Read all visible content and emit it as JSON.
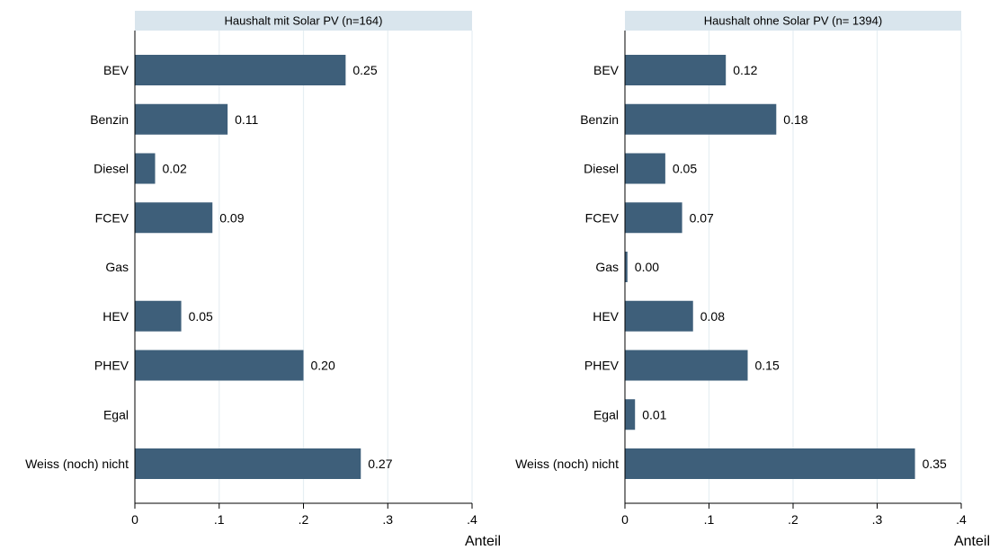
{
  "chart_data": {
    "type": "bar",
    "orientation": "horizontal",
    "categories": [
      "BEV",
      "Benzin",
      "Diesel",
      "FCEV",
      "Gas",
      "HEV",
      "PHEV",
      "Egal",
      "Weiss (noch) nicht"
    ],
    "xlabel": "Anteil",
    "xlim": [
      0,
      0.4
    ],
    "xticks": [
      0,
      0.1,
      0.2,
      0.3,
      0.4
    ],
    "xtick_labels": [
      "0",
      ".1",
      ".2",
      ".3",
      ".4"
    ],
    "grid": "vertical",
    "panels": [
      {
        "title": "Haushalt mit Solar PV (n=164)",
        "values": [
          0.25,
          0.11,
          0.024,
          0.092,
          0,
          0.055,
          0.2,
          0,
          0.268
        ],
        "value_labels": [
          "0.25",
          "0.11",
          "0.02",
          "0.09",
          "",
          "0.05",
          "0.20",
          "",
          "0.27"
        ]
      },
      {
        "title": "Haushalt ohne Solar PV (n= 1394)",
        "values": [
          0.12,
          0.18,
          0.048,
          0.068,
          0.003,
          0.081,
          0.146,
          0.012,
          0.345
        ],
        "value_labels": [
          "0.12",
          "0.18",
          "0.05",
          "0.07",
          "0.00",
          "0.08",
          "0.15",
          "0.01",
          "0.35"
        ]
      }
    ],
    "colors": {
      "bar": "#3e5f7a",
      "title_bg": "#d9e5ed",
      "grid": "#e6eef3",
      "axis": "#000000"
    }
  }
}
